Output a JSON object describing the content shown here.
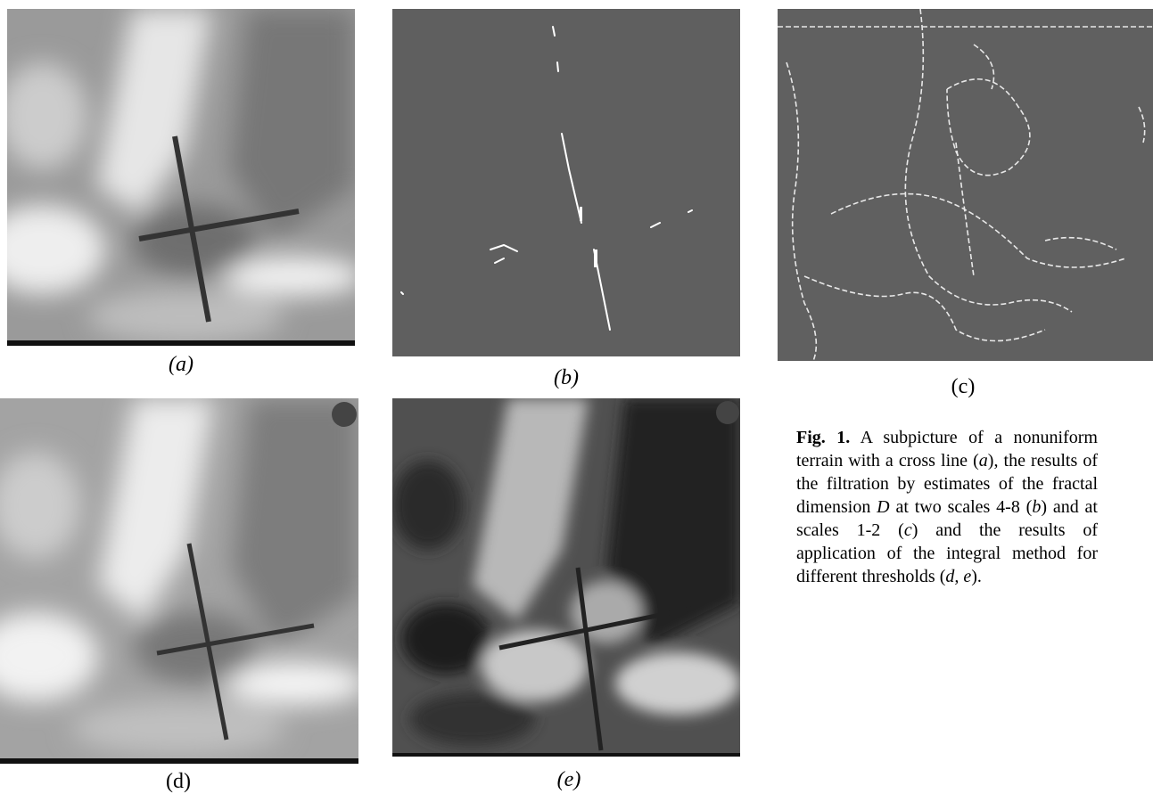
{
  "panels": [
    {
      "label": "(a)"
    },
    {
      "label": "(b)"
    },
    {
      "label": "(c)"
    },
    {
      "label": "(d)"
    },
    {
      "label": "(e)"
    }
  ],
  "caption": [
    "Fig. 1.",
    " A subpicture of a nonuniform terrain with a cross line (",
    "a",
    "), the results of the filtration by estimates of the fractal dimension ",
    "D",
    " at two scales 4-8 (",
    "b",
    ") and at scales 1-2 (",
    "c",
    ") and the results of application of the integral method for different thresholds (",
    "d, e",
    ")."
  ]
}
